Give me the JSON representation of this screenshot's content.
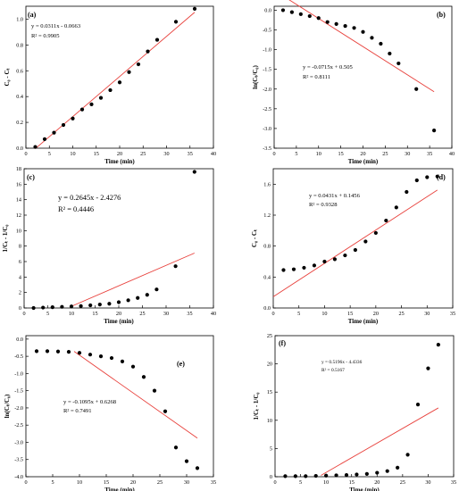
{
  "chart_data": [
    {
      "type": "scatter",
      "panel_label": "(a)",
      "xlabel": "Time (min)",
      "ylabel": "C₀ - Cₜ",
      "xlim": [
        0,
        40
      ],
      "ylim": [
        0,
        1.1
      ],
      "xticks": [
        0,
        5,
        10,
        15,
        20,
        25,
        30,
        35,
        40
      ],
      "yticks": [
        0,
        0.2,
        0.4,
        0.6,
        0.8,
        1.0
      ],
      "ytick_labels": [
        "0.0",
        "0.2",
        "0.4",
        "0.6",
        "0.8",
        "1.0"
      ],
      "x": [
        2,
        4,
        6,
        8,
        10,
        12,
        14,
        16,
        18,
        20,
        22,
        24,
        26,
        28,
        32,
        36
      ],
      "y": [
        0.01,
        0.07,
        0.12,
        0.18,
        0.23,
        0.3,
        0.34,
        0.39,
        0.45,
        0.51,
        0.59,
        0.65,
        0.75,
        0.84,
        0.98,
        1.08
      ],
      "fit": {
        "slope": 0.0311,
        "intercept": -0.0663,
        "x_range": [
          2,
          36
        ],
        "color": "#e8413c"
      },
      "equation": "y = 0.0311x - 0.0663",
      "r2": "R² = 0.9905",
      "annotation_pos": "top-left"
    },
    {
      "type": "scatter",
      "panel_label": "(b)",
      "xlabel": "Time (min)",
      "ylabel": "ln(Cₜ/C₀)",
      "xlim": [
        0,
        40
      ],
      "ylim": [
        -3.5,
        0.1
      ],
      "xticks": [
        0,
        5,
        10,
        15,
        20,
        25,
        30,
        35,
        40
      ],
      "yticks": [
        0,
        -0.5,
        -1.0,
        -1.5,
        -2.0,
        -2.5,
        -3.0,
        -3.5
      ],
      "ytick_labels": [
        "0.0",
        "-0.5",
        "-1.0",
        "-1.5",
        "-2.0",
        "-2.5",
        "-3.0",
        "-3.5"
      ],
      "x": [
        2,
        4,
        6,
        8,
        10,
        12,
        14,
        16,
        18,
        20,
        22,
        24,
        26,
        28,
        32,
        36
      ],
      "y": [
        0,
        -0.05,
        -0.1,
        -0.15,
        -0.2,
        -0.3,
        -0.35,
        -0.4,
        -0.45,
        -0.55,
        -0.7,
        -0.85,
        -1.1,
        -1.35,
        -2.0,
        -3.05
      ],
      "fit": {
        "slope": -0.0715,
        "intercept": 0.505,
        "x_range": [
          2,
          36
        ],
        "color": "#e8413c"
      },
      "equation": "y = -0.0715x + 0.505",
      "r2": "R² = 0.8111",
      "annotation_pos": "middle"
    },
    {
      "type": "scatter",
      "panel_label": "(c)",
      "xlabel": "Time (min)",
      "ylabel": "1/Cₜ - 1/C₀",
      "xlim": [
        0,
        40
      ],
      "ylim": [
        0,
        18
      ],
      "xticks": [
        0,
        5,
        10,
        15,
        20,
        25,
        30,
        35,
        40
      ],
      "yticks": [
        0,
        2,
        4,
        6,
        8,
        10,
        12,
        14,
        16,
        18
      ],
      "ytick_labels": [
        "0",
        "2",
        "4",
        "6",
        "8",
        "10",
        "12",
        "14",
        "16",
        "18"
      ],
      "x": [
        2,
        4,
        6,
        8,
        10,
        12,
        14,
        16,
        18,
        20,
        22,
        24,
        26,
        28,
        32,
        36
      ],
      "y": [
        0,
        0.05,
        0.1,
        0.15,
        0.2,
        0.25,
        0.35,
        0.45,
        0.55,
        0.75,
        1.0,
        1.3,
        1.7,
        2.4,
        5.4,
        17.6
      ],
      "fit": {
        "slope": 0.2645,
        "intercept": -2.4276,
        "x_range": [
          10,
          36
        ],
        "color": "#e8413c"
      },
      "equation": "y = 0.2645x - 2.4276",
      "r2": "R² = 0.4446",
      "annotation_pos": "top-left"
    },
    {
      "type": "scatter",
      "panel_label": "(d)",
      "xlabel": "Time (min)",
      "ylabel": "C₀ - Cₜ",
      "xlim": [
        0,
        35
      ],
      "ylim": [
        0,
        1.8
      ],
      "xticks": [
        0,
        5,
        10,
        15,
        20,
        25,
        30,
        35
      ],
      "yticks": [
        0,
        0.4,
        0.8,
        1.2,
        1.6
      ],
      "ytick_labels": [
        "0.0",
        "0.4",
        "0.8",
        "1.2",
        "1.6"
      ],
      "x": [
        2,
        4,
        6,
        8,
        10,
        12,
        14,
        16,
        18,
        20,
        22,
        24,
        26,
        28,
        30,
        32
      ],
      "y": [
        0.49,
        0.5,
        0.52,
        0.55,
        0.6,
        0.63,
        0.68,
        0.75,
        0.86,
        0.97,
        1.13,
        1.3,
        1.5,
        1.65,
        1.69,
        1.7
      ],
      "fit": {
        "slope": 0.0431,
        "intercept": 0.1456,
        "x_range": [
          0,
          32
        ],
        "color": "#e8413c"
      },
      "equation": "y = 0.0431x + 0.1456",
      "r2": "R² = 0.9328",
      "annotation_pos": "top-left"
    },
    {
      "type": "scatter",
      "panel_label": "(e)",
      "xlabel": "Time (min)",
      "ylabel": "ln(Cₜ/C₀)",
      "xlim": [
        0,
        35
      ],
      "ylim": [
        -4.0,
        0.1
      ],
      "xticks": [
        0,
        5,
        10,
        15,
        20,
        25,
        30,
        35
      ],
      "yticks": [
        0,
        -0.5,
        -1.0,
        -1.5,
        -2.0,
        -2.5,
        -3.0,
        -3.5,
        -4.0
      ],
      "ytick_labels": [
        "0.0",
        "-0.5",
        "-1.0",
        "-1.5",
        "-2.0",
        "-2.5",
        "-3.0",
        "-3.5",
        "-4.0"
      ],
      "x": [
        2,
        4,
        6,
        8,
        10,
        12,
        14,
        16,
        18,
        20,
        22,
        24,
        26,
        28,
        30,
        32
      ],
      "y": [
        -0.35,
        -0.35,
        -0.36,
        -0.37,
        -0.4,
        -0.45,
        -0.5,
        -0.55,
        -0.65,
        -0.8,
        -1.1,
        -1.5,
        -2.1,
        -3.15,
        -3.55,
        -3.75
      ],
      "fit": {
        "slope": -0.1095,
        "intercept": 0.6268,
        "x_range": [
          9,
          32
        ],
        "color": "#e8413c"
      },
      "equation": "y = -0.1095x + 0.6268",
      "r2": "R² = 0.7491",
      "annotation_pos": "middle-left"
    },
    {
      "type": "scatter",
      "panel_label": "(f)",
      "xlabel": "Time (min)",
      "ylabel": "1/Cₜ - 1/C₀",
      "xlim": [
        0,
        35
      ],
      "ylim": [
        0,
        25
      ],
      "xticks": [
        0,
        5,
        10,
        15,
        20,
        25,
        30,
        35
      ],
      "yticks": [
        0,
        5,
        10,
        15,
        20,
        25
      ],
      "ytick_labels": [
        "0",
        "5",
        "10",
        "15",
        "20",
        "25"
      ],
      "x": [
        2,
        4,
        6,
        8,
        10,
        12,
        14,
        16,
        18,
        20,
        22,
        24,
        26,
        28,
        30,
        32
      ],
      "y": [
        0.1,
        0.1,
        0.1,
        0.15,
        0.2,
        0.25,
        0.3,
        0.4,
        0.5,
        0.7,
        1.0,
        1.6,
        3.9,
        12.8,
        19.2,
        23.4
      ],
      "fit": {
        "slope": 0.5196,
        "intercept": -4.4336,
        "x_range": [
          9,
          32
        ],
        "color": "#e8413c"
      },
      "equation": "y = 0.5196x - 4.4336",
      "r2": "R² = 0.5167",
      "annotation_pos": "top-left"
    }
  ]
}
